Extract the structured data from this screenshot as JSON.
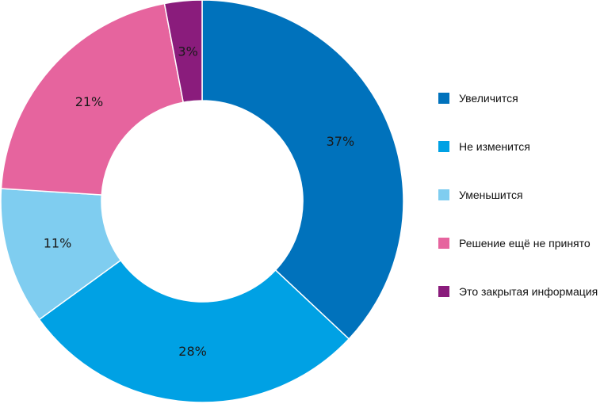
{
  "chart_data": {
    "type": "pie",
    "donut": true,
    "title": "",
    "categories": [
      "Увеличится",
      "Не изменится",
      "Уменьшится",
      "Решение ещё не принято",
      "Это закрытая информация"
    ],
    "values": [
      37,
      28,
      11,
      21,
      3
    ],
    "value_labels": [
      "37%",
      "28%",
      "11%",
      "21%",
      "3%"
    ],
    "colors": [
      "#0072bc",
      "#00a1e4",
      "#7fcdf0",
      "#e6649e",
      "#8a1c7c"
    ],
    "legend_position": "right"
  }
}
